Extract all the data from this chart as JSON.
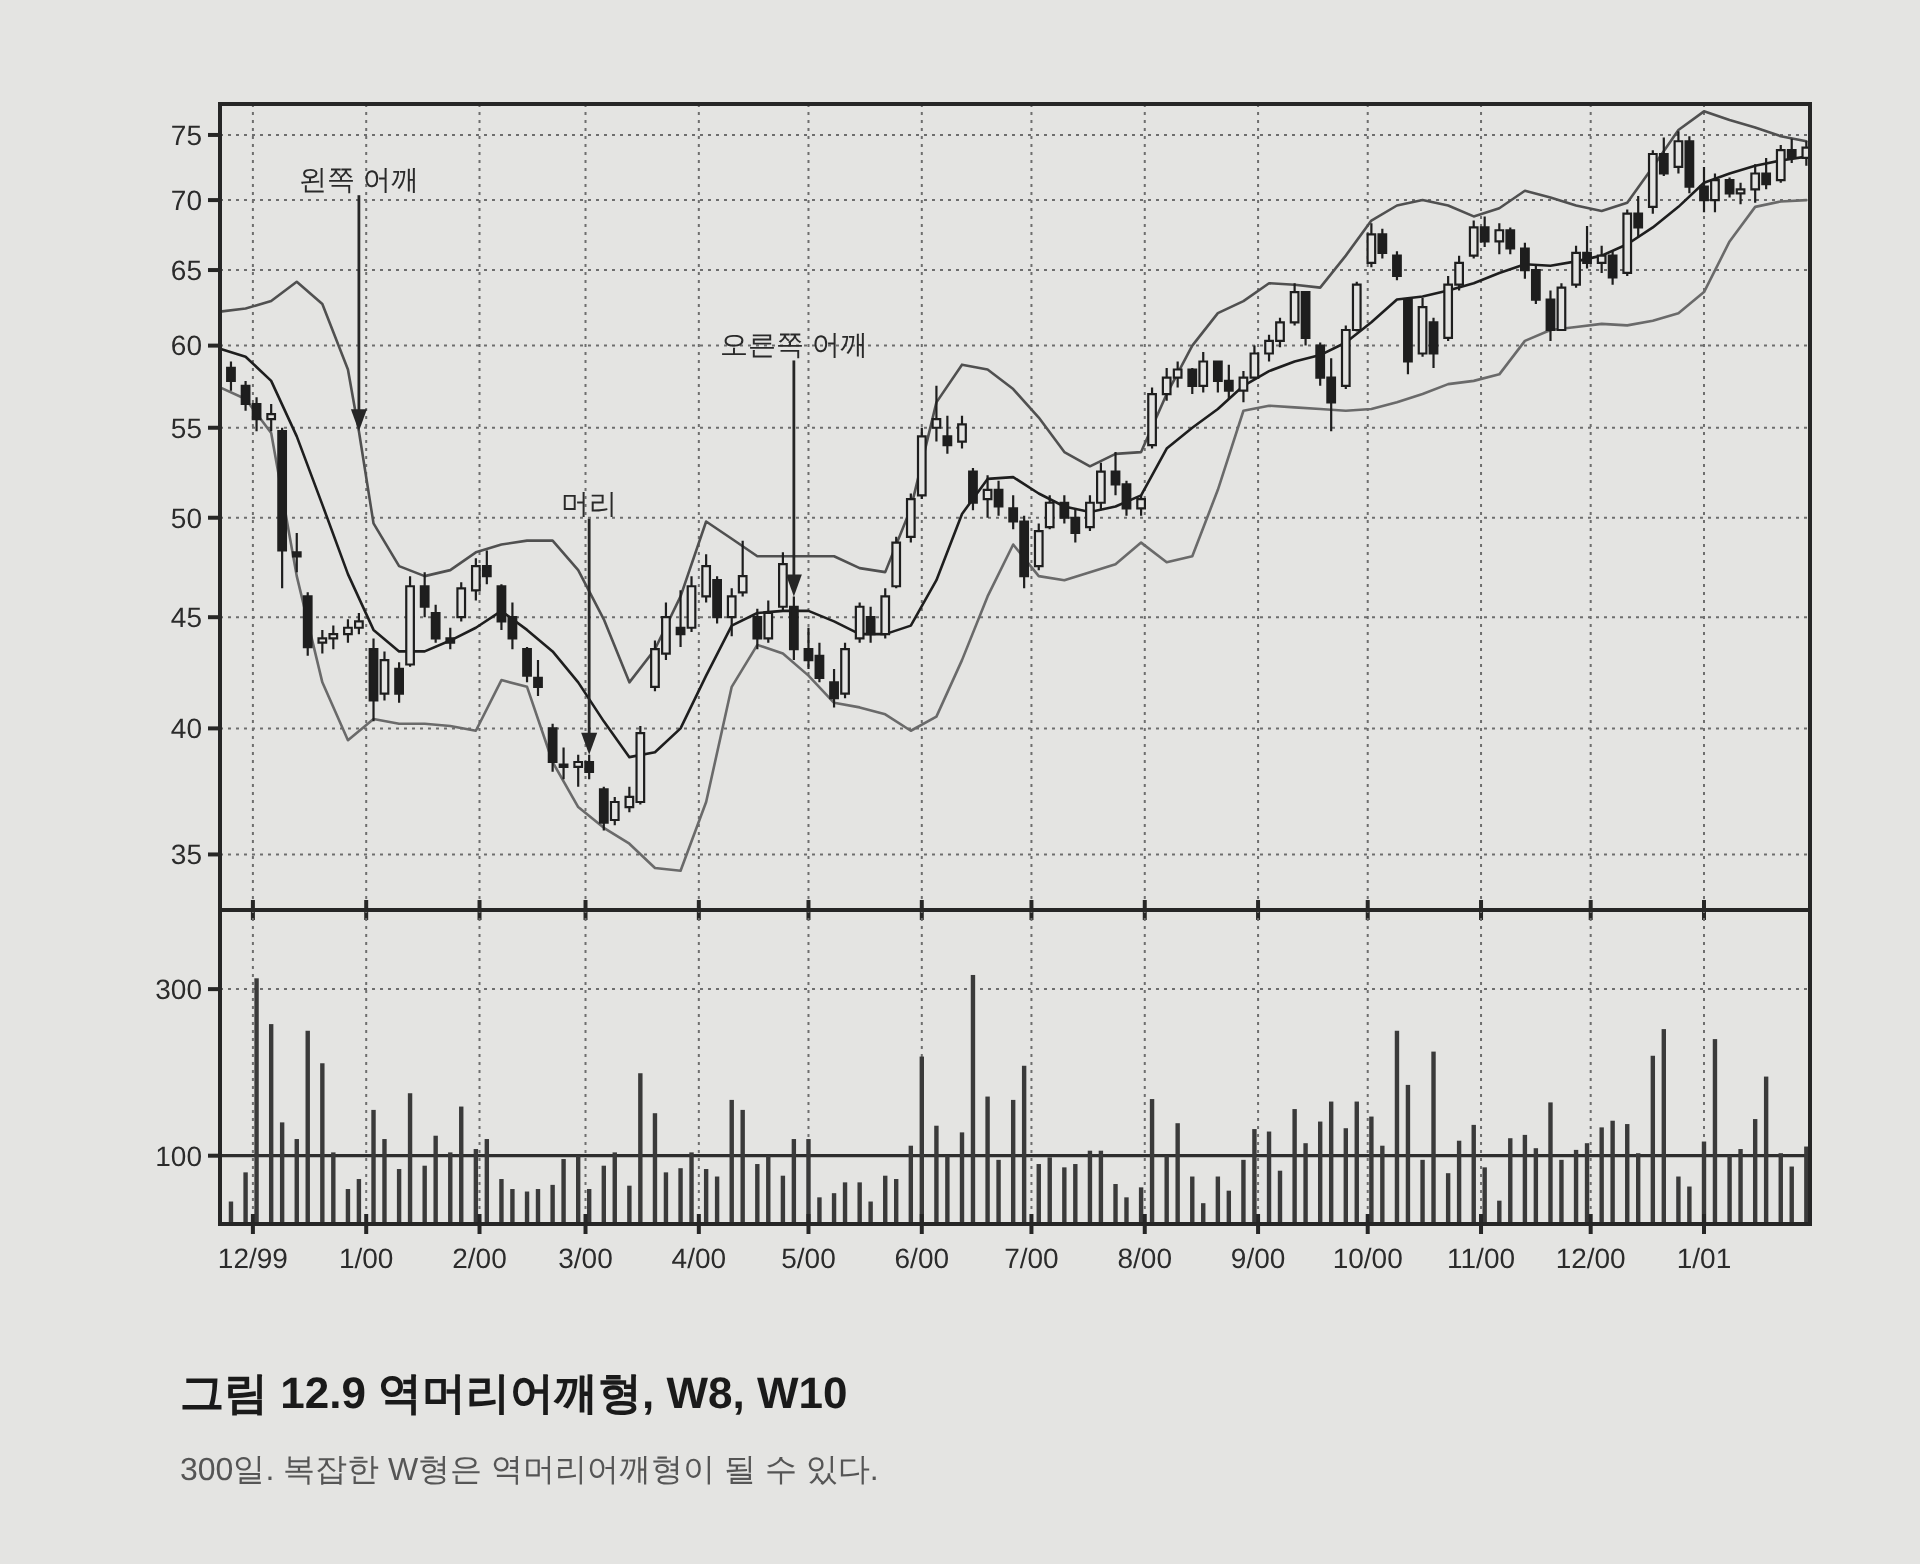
{
  "chart_data": [
    {
      "type": "candlestick",
      "color": "#1e1e1e",
      "x": [
        "1999-11-25",
        "1999-11-29",
        "1999-12-02",
        "1999-12-06",
        "1999-12-09",
        "1999-12-13",
        "1999-12-16",
        "1999-12-20",
        "1999-12-23",
        "1999-12-27",
        "1999-12-30",
        "2000-01-03",
        "2000-01-06",
        "2000-01-10",
        "2000-01-13",
        "2000-01-17",
        "2000-01-20",
        "2000-01-24",
        "2000-01-27",
        "2000-01-31",
        "2000-02-03",
        "2000-02-07",
        "2000-02-10",
        "2000-02-14",
        "2000-02-17",
        "2000-02-21",
        "2000-02-24",
        "2000-02-28",
        "2000-03-02",
        "2000-03-06",
        "2000-03-09",
        "2000-03-13",
        "2000-03-16",
        "2000-03-20",
        "2000-03-23",
        "2000-03-27",
        "2000-03-30",
        "2000-04-03",
        "2000-04-06",
        "2000-04-10",
        "2000-04-13",
        "2000-04-17",
        "2000-04-20",
        "2000-04-24",
        "2000-04-27",
        "2000-05-01",
        "2000-05-04",
        "2000-05-08",
        "2000-05-11",
        "2000-05-15",
        "2000-05-18",
        "2000-05-22",
        "2000-05-25",
        "2000-05-29",
        "2000-06-01",
        "2000-06-05",
        "2000-06-08",
        "2000-06-12",
        "2000-06-15",
        "2000-06-19",
        "2000-06-22",
        "2000-06-26",
        "2000-06-29",
        "2000-07-03",
        "2000-07-06",
        "2000-07-10",
        "2000-07-13",
        "2000-07-17",
        "2000-07-20",
        "2000-07-24",
        "2000-07-27",
        "2000-07-31",
        "2000-08-03",
        "2000-08-07",
        "2000-08-10",
        "2000-08-14",
        "2000-08-17",
        "2000-08-21",
        "2000-08-24",
        "2000-08-28",
        "2000-08-31",
        "2000-09-04",
        "2000-09-07",
        "2000-09-11",
        "2000-09-14",
        "2000-09-18",
        "2000-09-21",
        "2000-09-25",
        "2000-09-28",
        "2000-10-02",
        "2000-10-05",
        "2000-10-09",
        "2000-10-12",
        "2000-10-16",
        "2000-10-19",
        "2000-10-23",
        "2000-10-26",
        "2000-10-30",
        "2000-11-02",
        "2000-11-06",
        "2000-11-09",
        "2000-11-13",
        "2000-11-16",
        "2000-11-20",
        "2000-11-23",
        "2000-11-27",
        "2000-11-30",
        "2000-12-04",
        "2000-12-07",
        "2000-12-11",
        "2000-12-14",
        "2000-12-18",
        "2000-12-21",
        "2000-12-25",
        "2000-12-28",
        "2001-01-01",
        "2001-01-04",
        "2001-01-08",
        "2001-01-11",
        "2001-01-15",
        "2001-01-18",
        "2001-01-22",
        "2001-01-25",
        "2001-01-29"
      ],
      "ohlc": [
        [
          58.6,
          59.0,
          57.2,
          57.8
        ],
        [
          57.5,
          57.8,
          56.0,
          56.4
        ],
        [
          56.4,
          56.8,
          54.8,
          55.5
        ],
        [
          55.5,
          56.4,
          54.8,
          55.8
        ],
        [
          54.8,
          55.0,
          46.4,
          48.3
        ],
        [
          48.2,
          49.2,
          47.2,
          48.0
        ],
        [
          46.0,
          46.2,
          43.2,
          43.6
        ],
        [
          43.8,
          44.4,
          43.3,
          44.0
        ],
        [
          44.0,
          44.6,
          43.5,
          44.2
        ],
        [
          44.2,
          44.9,
          43.8,
          44.5
        ],
        [
          44.5,
          45.2,
          44.2,
          44.8
        ],
        [
          43.5,
          44.0,
          40.3,
          41.2
        ],
        [
          41.5,
          43.4,
          41.2,
          43.0
        ],
        [
          42.6,
          42.9,
          41.1,
          41.5
        ],
        [
          42.8,
          47.0,
          42.7,
          46.5
        ],
        [
          46.5,
          47.2,
          45.0,
          45.5
        ],
        [
          45.2,
          45.6,
          43.8,
          44.0
        ],
        [
          44.0,
          44.5,
          43.5,
          43.8
        ],
        [
          45.0,
          46.7,
          44.8,
          46.4
        ],
        [
          46.3,
          47.9,
          45.8,
          47.5
        ],
        [
          47.5,
          48.3,
          46.6,
          47.0
        ],
        [
          46.5,
          46.6,
          44.4,
          44.8
        ],
        [
          45.0,
          45.7,
          43.5,
          44.0
        ],
        [
          43.5,
          43.6,
          42.0,
          42.3
        ],
        [
          42.2,
          43.0,
          41.4,
          41.8
        ],
        [
          40.0,
          40.2,
          38.2,
          38.6
        ],
        [
          38.5,
          39.2,
          37.9,
          38.4
        ],
        [
          38.4,
          38.9,
          37.6,
          38.6
        ],
        [
          38.6,
          38.9,
          37.9,
          38.2
        ],
        [
          37.5,
          37.6,
          35.9,
          36.2
        ],
        [
          36.3,
          37.2,
          36.1,
          37.0
        ],
        [
          36.8,
          37.6,
          36.6,
          37.2
        ],
        [
          37.0,
          40.1,
          36.9,
          39.8
        ],
        [
          41.8,
          43.9,
          41.6,
          43.5
        ],
        [
          43.3,
          45.7,
          43.0,
          45.0
        ],
        [
          44.5,
          46.3,
          43.6,
          44.2
        ],
        [
          44.5,
          47.0,
          44.3,
          46.5
        ],
        [
          46.0,
          48.1,
          45.7,
          47.5
        ],
        [
          46.8,
          47.0,
          44.7,
          45.0
        ],
        [
          45.0,
          46.4,
          44.1,
          46.0
        ],
        [
          46.2,
          48.8,
          46.0,
          47.0
        ],
        [
          45.0,
          45.4,
          43.5,
          44.0
        ],
        [
          44.0,
          45.8,
          43.8,
          45.2
        ],
        [
          45.5,
          48.2,
          45.3,
          47.6
        ],
        [
          45.5,
          46.0,
          43.0,
          43.5
        ],
        [
          43.5,
          44.5,
          42.6,
          43.0
        ],
        [
          43.2,
          43.8,
          42.0,
          42.2
        ],
        [
          42.0,
          42.6,
          40.9,
          41.3
        ],
        [
          41.5,
          43.8,
          41.3,
          43.5
        ],
        [
          44.0,
          45.7,
          43.8,
          45.5
        ],
        [
          45.0,
          45.5,
          43.8,
          44.2
        ],
        [
          44.2,
          46.4,
          44.0,
          46.0
        ],
        [
          46.5,
          49.0,
          46.4,
          48.7
        ],
        [
          49.0,
          51.3,
          48.7,
          51.0
        ],
        [
          51.2,
          55.0,
          51.0,
          54.5
        ],
        [
          55.0,
          57.5,
          54.2,
          55.5
        ],
        [
          54.5,
          55.7,
          53.5,
          54.0
        ],
        [
          54.2,
          55.7,
          53.8,
          55.2
        ],
        [
          52.5,
          52.7,
          50.4,
          50.8
        ],
        [
          51.0,
          52.3,
          50.0,
          51.5
        ],
        [
          51.5,
          52.0,
          50.1,
          50.6
        ],
        [
          50.5,
          51.2,
          49.4,
          49.8
        ],
        [
          49.8,
          50.1,
          46.4,
          47.0
        ],
        [
          47.5,
          49.7,
          47.3,
          49.3
        ],
        [
          49.5,
          51.2,
          49.4,
          50.8
        ],
        [
          50.8,
          51.2,
          49.7,
          50.0
        ],
        [
          50.0,
          50.5,
          48.7,
          49.2
        ],
        [
          49.5,
          51.2,
          49.3,
          50.8
        ],
        [
          50.8,
          53.0,
          50.4,
          52.5
        ],
        [
          52.5,
          53.6,
          51.2,
          51.8
        ],
        [
          51.8,
          52.0,
          50.1,
          50.5
        ],
        [
          50.5,
          51.2,
          50.1,
          51.0
        ],
        [
          54.0,
          57.4,
          53.8,
          57.0
        ],
        [
          57.0,
          58.6,
          56.6,
          58.0
        ],
        [
          58.0,
          59.0,
          57.4,
          58.5
        ],
        [
          58.5,
          58.6,
          57.0,
          57.5
        ],
        [
          57.5,
          59.6,
          57.1,
          59.0
        ],
        [
          59.0,
          59.0,
          57.1,
          57.8
        ],
        [
          57.8,
          58.8,
          56.7,
          57.2
        ],
        [
          57.2,
          58.4,
          56.5,
          58.0
        ],
        [
          58.0,
          60.0,
          57.9,
          59.5
        ],
        [
          59.5,
          60.7,
          59.0,
          60.3
        ],
        [
          60.3,
          61.8,
          59.9,
          61.5
        ],
        [
          61.5,
          64.1,
          61.3,
          63.5
        ],
        [
          63.5,
          63.5,
          60.0,
          60.5
        ],
        [
          60.0,
          60.2,
          57.5,
          58.0
        ],
        [
          58.0,
          59.2,
          54.8,
          56.5
        ],
        [
          57.5,
          61.3,
          57.3,
          61.0
        ],
        [
          61.0,
          64.2,
          60.9,
          64.0
        ],
        [
          65.5,
          68.3,
          65.2,
          67.5
        ],
        [
          67.5,
          67.9,
          65.8,
          66.2
        ],
        [
          66.0,
          66.3,
          64.3,
          64.6
        ],
        [
          63.0,
          63.1,
          58.2,
          59.0
        ],
        [
          59.5,
          63.1,
          59.3,
          62.5
        ],
        [
          61.5,
          61.8,
          58.6,
          59.5
        ],
        [
          60.5,
          64.6,
          60.3,
          64.0
        ],
        [
          64.0,
          66.0,
          63.6,
          65.5
        ],
        [
          66.0,
          68.5,
          65.8,
          68.0
        ],
        [
          68.0,
          68.8,
          66.6,
          67.0
        ],
        [
          67.0,
          68.3,
          66.1,
          67.8
        ],
        [
          67.8,
          68.0,
          66.1,
          66.5
        ],
        [
          66.5,
          66.9,
          64.4,
          65.0
        ],
        [
          65.0,
          65.4,
          62.7,
          63.0
        ],
        [
          63.0,
          63.6,
          60.3,
          61.0
        ],
        [
          61.0,
          64.1,
          61.0,
          63.8
        ],
        [
          64.0,
          66.7,
          63.8,
          66.2
        ],
        [
          66.2,
          68.1,
          65.1,
          65.5
        ],
        [
          65.5,
          66.7,
          64.8,
          66.0
        ],
        [
          66.0,
          66.3,
          64.0,
          64.5
        ],
        [
          64.8,
          69.3,
          64.6,
          69.0
        ],
        [
          69.0,
          70.3,
          67.3,
          68.0
        ],
        [
          69.5,
          73.8,
          69.0,
          73.5
        ],
        [
          73.5,
          74.8,
          71.8,
          72.0
        ],
        [
          72.5,
          75.3,
          72.0,
          74.5
        ],
        [
          74.5,
          74.9,
          70.5,
          71.0
        ],
        [
          71.0,
          72.5,
          69.1,
          70.0
        ],
        [
          70.0,
          72.0,
          69.1,
          71.5
        ],
        [
          71.5,
          71.7,
          70.2,
          70.5
        ],
        [
          70.5,
          71.3,
          69.7,
          70.8
        ],
        [
          70.8,
          72.7,
          69.8,
          72.0
        ],
        [
          72.0,
          73.2,
          70.8,
          71.2
        ],
        [
          71.5,
          74.2,
          71.3,
          73.8
        ],
        [
          73.8,
          74.7,
          72.8,
          73.2
        ],
        [
          73.2,
          74.5,
          72.6,
          74.0
        ]
      ],
      "series": [
        {
          "type": "line",
          "color": "#505050",
          "x": [
            "1999-11-22",
            "1999-11-29",
            "1999-12-06",
            "1999-12-13",
            "1999-12-20",
            "1999-12-27",
            "1999-12-30",
            "2000-01-03",
            "2000-01-10",
            "2000-01-17",
            "2000-01-24",
            "2000-01-31",
            "2000-02-07",
            "2000-02-14",
            "2000-02-21",
            "2000-02-28",
            "2000-03-06",
            "2000-03-13",
            "2000-03-20",
            "2000-03-27",
            "2000-04-03",
            "2000-04-10",
            "2000-04-17",
            "2000-04-24",
            "2000-05-01",
            "2000-05-08",
            "2000-05-15",
            "2000-05-22",
            "2000-05-29",
            "2000-06-05",
            "2000-06-12",
            "2000-06-19",
            "2000-06-26",
            "2000-07-03",
            "2000-07-10",
            "2000-07-17",
            "2000-07-24",
            "2000-07-31",
            "2000-08-07",
            "2000-08-14",
            "2000-08-21",
            "2000-08-28",
            "2000-09-04",
            "2000-09-11",
            "2000-09-18",
            "2000-09-25",
            "2000-10-02",
            "2000-10-09",
            "2000-10-16",
            "2000-10-23",
            "2000-10-30",
            "2000-11-06",
            "2000-11-13",
            "2000-11-20",
            "2000-11-27",
            "2000-12-04",
            "2000-12-11",
            "2000-12-18",
            "2000-12-25",
            "2001-01-01",
            "2001-01-08",
            "2001-01-15",
            "2001-01-22",
            "2001-01-29"
          ],
          "values": [
            62.2,
            62.4,
            62.9,
            64.2,
            62.7,
            58.5,
            54.8,
            49.7,
            47.5,
            47.0,
            47.3,
            48.2,
            48.6,
            48.8,
            48.8,
            47.3,
            44.9,
            42.0,
            43.5,
            46.0,
            49.8,
            48.9,
            48.0,
            48.0,
            48.0,
            48.0,
            47.4,
            47.2,
            50.5,
            56.5,
            58.8,
            58.5,
            57.3,
            55.6,
            53.6,
            52.8,
            53.5,
            53.6,
            57.0,
            60.0,
            62.1,
            62.9,
            64.1,
            64.0,
            63.8,
            66.0,
            68.5,
            69.6,
            70.0,
            69.6,
            68.8,
            69.4,
            70.7,
            70.2,
            69.6,
            69.2,
            69.8,
            72.5,
            75.4,
            76.9,
            76.2,
            75.6,
            74.9,
            74.5
          ]
        },
        {
          "type": "line",
          "color": "#1e1e1e",
          "x": [
            "1999-11-22",
            "1999-11-29",
            "1999-12-06",
            "1999-12-13",
            "1999-12-20",
            "1999-12-27",
            "2000-01-03",
            "2000-01-10",
            "2000-01-17",
            "2000-01-24",
            "2000-01-31",
            "2000-02-07",
            "2000-02-14",
            "2000-02-21",
            "2000-02-28",
            "2000-03-06",
            "2000-03-13",
            "2000-03-20",
            "2000-03-27",
            "2000-04-03",
            "2000-04-10",
            "2000-04-17",
            "2000-04-24",
            "2000-05-01",
            "2000-05-08",
            "2000-05-15",
            "2000-05-22",
            "2000-05-29",
            "2000-06-05",
            "2000-06-12",
            "2000-06-19",
            "2000-06-26",
            "2000-07-03",
            "2000-07-10",
            "2000-07-17",
            "2000-07-24",
            "2000-07-31",
            "2000-08-07",
            "2000-08-14",
            "2000-08-21",
            "2000-08-28",
            "2000-09-04",
            "2000-09-11",
            "2000-09-18",
            "2000-09-25",
            "2000-10-02",
            "2000-10-09",
            "2000-10-16",
            "2000-10-23",
            "2000-10-30",
            "2000-11-06",
            "2000-11-13",
            "2000-11-20",
            "2000-11-27",
            "2000-12-04",
            "2000-12-11",
            "2000-12-18",
            "2000-12-25",
            "2001-01-01",
            "2001-01-08",
            "2001-01-15",
            "2001-01-22",
            "2001-01-29"
          ],
          "values": [
            59.8,
            59.3,
            57.8,
            54.5,
            50.7,
            47.1,
            44.4,
            43.4,
            43.4,
            43.9,
            44.5,
            45.3,
            44.4,
            43.4,
            42.0,
            40.3,
            38.8,
            39.0,
            40.0,
            42.3,
            44.6,
            45.2,
            45.3,
            45.3,
            44.8,
            44.2,
            44.2,
            44.6,
            46.8,
            50.2,
            52.1,
            52.2,
            51.3,
            50.6,
            50.3,
            50.6,
            51.2,
            53.8,
            55.0,
            56.1,
            57.5,
            58.4,
            59.0,
            59.4,
            60.2,
            61.5,
            63.0,
            63.2,
            63.6,
            64.1,
            64.8,
            65.4,
            65.3,
            65.6,
            66.0,
            66.8,
            68.0,
            69.5,
            71.3,
            72.0,
            72.6,
            73.0,
            73.3
          ]
        },
        {
          "type": "line",
          "color": "#6a6a6a",
          "x": [
            "1999-11-22",
            "1999-11-29",
            "1999-12-06",
            "1999-12-13",
            "1999-12-20",
            "1999-12-27",
            "2000-01-03",
            "2000-01-10",
            "2000-01-17",
            "2000-01-24",
            "2000-01-31",
            "2000-02-07",
            "2000-02-14",
            "2000-02-21",
            "2000-02-28",
            "2000-03-06",
            "2000-03-13",
            "2000-03-20",
            "2000-03-27",
            "2000-04-03",
            "2000-04-10",
            "2000-04-17",
            "2000-04-24",
            "2000-05-01",
            "2000-05-08",
            "2000-05-15",
            "2000-05-22",
            "2000-05-29",
            "2000-06-05",
            "2000-06-12",
            "2000-06-19",
            "2000-06-26",
            "2000-07-03",
            "2000-07-10",
            "2000-07-17",
            "2000-07-24",
            "2000-07-31",
            "2000-08-07",
            "2000-08-14",
            "2000-08-21",
            "2000-08-28",
            "2000-09-04",
            "2000-09-11",
            "2000-09-18",
            "2000-09-25",
            "2000-10-02",
            "2000-10-09",
            "2000-10-16",
            "2000-10-23",
            "2000-10-30",
            "2000-11-06",
            "2000-11-13",
            "2000-11-20",
            "2000-11-27",
            "2000-12-04",
            "2000-12-11",
            "2000-12-18",
            "2000-12-25",
            "2001-01-01",
            "2001-01-08",
            "2001-01-15",
            "2001-01-22",
            "2001-01-29"
          ],
          "values": [
            57.4,
            56.7,
            54.7,
            47.0,
            42.0,
            39.5,
            40.4,
            40.2,
            40.2,
            40.1,
            39.9,
            42.1,
            41.8,
            38.6,
            36.8,
            36.0,
            35.4,
            34.5,
            34.4,
            37.0,
            41.8,
            43.7,
            43.3,
            42.3,
            41.1,
            40.9,
            40.6,
            39.9,
            40.5,
            43.0,
            46.0,
            48.6,
            47.0,
            46.8,
            47.2,
            47.6,
            48.7,
            47.7,
            48.0,
            51.5,
            56.0,
            56.3,
            56.2,
            56.1,
            56.0,
            56.1,
            56.5,
            57.0,
            57.6,
            57.8,
            58.2,
            60.3,
            61.0,
            61.2,
            61.4,
            61.3,
            61.6,
            62.1,
            63.5,
            67.0,
            69.5,
            69.9,
            70.0
          ]
        }
      ],
      "log": true,
      "ylim": [
        33,
        77.5
      ],
      "yticks": [
        35,
        40,
        45,
        50,
        55,
        60,
        65,
        70,
        75
      ],
      "xlim": [
        "1999-11-22",
        "2001-01-30"
      ],
      "xticks": [
        {
          "value": "1999-12-01",
          "label": null
        },
        {
          "value": "2000-01-01",
          "label": null
        },
        {
          "value": "2000-02-01",
          "label": null
        },
        {
          "value": "2000-03-01",
          "label": null
        },
        {
          "value": "2000-04-01",
          "label": null
        },
        {
          "value": "2000-05-01",
          "label": null
        },
        {
          "value": "2000-06-01",
          "label": null
        },
        {
          "value": "2000-07-01",
          "label": null
        },
        {
          "value": "2000-08-01",
          "label": null
        },
        {
          "value": "2000-09-01",
          "label": null
        },
        {
          "value": "2000-10-01",
          "label": null
        },
        {
          "value": "2000-11-01",
          "label": null
        },
        {
          "value": "2000-12-01",
          "label": null
        },
        {
          "value": "2001-01-01",
          "label": null
        }
      ],
      "tick_labels": "y",
      "grid": true,
      "annotations": [
        {
          "text": "왼쪽 어깨",
          "x": "1999-12-30",
          "y": 54.8
        },
        {
          "text": "머리",
          "x": "2000-03-02",
          "y": 38.9
        },
        {
          "text": "오른쪽 어깨",
          "x": "2000-04-27",
          "y": 46.0
        }
      ]
    },
    {
      "type": "bar",
      "color": "#3a3a3a",
      "x": [
        "1999-11-25",
        "1999-11-29",
        "1999-12-02",
        "1999-12-06",
        "1999-12-09",
        "1999-12-13",
        "1999-12-16",
        "1999-12-20",
        "1999-12-23",
        "1999-12-27",
        "1999-12-30",
        "2000-01-03",
        "2000-01-06",
        "2000-01-10",
        "2000-01-13",
        "2000-01-17",
        "2000-01-20",
        "2000-01-24",
        "2000-01-27",
        "2000-01-31",
        "2000-02-03",
        "2000-02-07",
        "2000-02-10",
        "2000-02-14",
        "2000-02-17",
        "2000-02-21",
        "2000-02-24",
        "2000-02-28",
        "2000-03-02",
        "2000-03-06",
        "2000-03-09",
        "2000-03-13",
        "2000-03-16",
        "2000-03-20",
        "2000-03-23",
        "2000-03-27",
        "2000-03-30",
        "2000-04-03",
        "2000-04-06",
        "2000-04-10",
        "2000-04-13",
        "2000-04-17",
        "2000-04-20",
        "2000-04-24",
        "2000-04-27",
        "2000-05-01",
        "2000-05-04",
        "2000-05-08",
        "2000-05-11",
        "2000-05-15",
        "2000-05-18",
        "2000-05-22",
        "2000-05-25",
        "2000-05-29",
        "2000-06-01",
        "2000-06-05",
        "2000-06-08",
        "2000-06-12",
        "2000-06-15",
        "2000-06-19",
        "2000-06-22",
        "2000-06-26",
        "2000-06-29",
        "2000-07-03",
        "2000-07-06",
        "2000-07-10",
        "2000-07-13",
        "2000-07-17",
        "2000-07-20",
        "2000-07-24",
        "2000-07-27",
        "2000-07-31",
        "2000-08-03",
        "2000-08-07",
        "2000-08-10",
        "2000-08-14",
        "2000-08-17",
        "2000-08-21",
        "2000-08-24",
        "2000-08-28",
        "2000-08-31",
        "2000-09-04",
        "2000-09-07",
        "2000-09-11",
        "2000-09-14",
        "2000-09-18",
        "2000-09-21",
        "2000-09-25",
        "2000-09-28",
        "2000-10-02",
        "2000-10-05",
        "2000-10-09",
        "2000-10-12",
        "2000-10-16",
        "2000-10-19",
        "2000-10-23",
        "2000-10-26",
        "2000-10-30",
        "2000-11-02",
        "2000-11-06",
        "2000-11-09",
        "2000-11-13",
        "2000-11-16",
        "2000-11-20",
        "2000-11-23",
        "2000-11-27",
        "2000-11-30",
        "2000-12-04",
        "2000-12-07",
        "2000-12-11",
        "2000-12-14",
        "2000-12-18",
        "2000-12-21",
        "2000-12-25",
        "2000-12-28",
        "2001-01-01",
        "2001-01-04",
        "2001-01-08",
        "2001-01-11",
        "2001-01-15",
        "2001-01-18",
        "2001-01-22",
        "2001-01-25",
        "2001-01-29"
      ],
      "values": [
        45,
        80,
        313,
        258,
        140,
        120,
        250,
        211,
        104,
        60,
        72,
        155,
        120,
        84,
        175,
        88,
        124,
        104,
        159,
        108,
        120,
        72,
        60,
        57,
        60,
        65,
        96,
        100,
        60,
        88,
        104,
        64,
        199,
        151,
        80,
        85,
        104,
        84,
        75,
        167,
        155,
        90,
        100,
        76,
        120,
        120,
        50,
        55,
        68,
        68,
        45,
        76,
        72,
        112,
        219,
        136,
        100,
        128,
        317,
        171,
        95,
        167,
        208,
        90,
        98,
        86,
        90,
        106,
        106,
        66,
        50,
        62,
        168,
        100,
        139,
        75,
        43,
        75,
        58,
        95,
        132,
        129,
        82,
        156,
        115,
        141,
        165,
        133,
        165,
        147,
        112,
        250,
        185,
        95,
        225,
        79,
        118,
        137,
        86,
        46,
        121,
        125,
        109,
        164,
        95,
        107,
        115,
        134,
        142,
        138,
        103,
        220,
        252,
        75,
        63,
        117,
        240,
        100,
        108,
        144,
        195,
        103,
        87,
        111
      ],
      "ylim": [
        18,
        395
      ],
      "yticks": [
        100,
        300
      ],
      "xlim": [
        "1999-11-22",
        "2001-01-30"
      ],
      "xticks": [
        {
          "value": "1999-12-01",
          "label": "12/99"
        },
        {
          "value": "2000-01-01",
          "label": "1/00"
        },
        {
          "value": "2000-02-01",
          "label": "2/00"
        },
        {
          "value": "2000-03-01",
          "label": "3/00"
        },
        {
          "value": "2000-04-01",
          "label": "4/00"
        },
        {
          "value": "2000-05-01",
          "label": "5/00"
        },
        {
          "value": "2000-06-01",
          "label": "6/00"
        },
        {
          "value": "2000-07-01",
          "label": "7/00"
        },
        {
          "value": "2000-08-01",
          "label": "8/00"
        },
        {
          "value": "2000-09-01",
          "label": "9/00"
        },
        {
          "value": "2000-10-01",
          "label": "10/00"
        },
        {
          "value": "2000-11-01",
          "label": "11/00"
        },
        {
          "value": "2000-12-01",
          "label": "12/00"
        },
        {
          "value": "2001-01-01",
          "label": "1/01"
        }
      ],
      "grid": true,
      "ref_lines": [
        {
          "axis": "y",
          "value": 100,
          "color": "#2e2e2e",
          "line_style": "solid"
        }
      ],
      "title": "그림 12.9 역머리어깨형, W8, W10",
      "subtitle": "300일. 복잡한 W형은 역머리어깨형이 될 수 있다."
    }
  ]
}
